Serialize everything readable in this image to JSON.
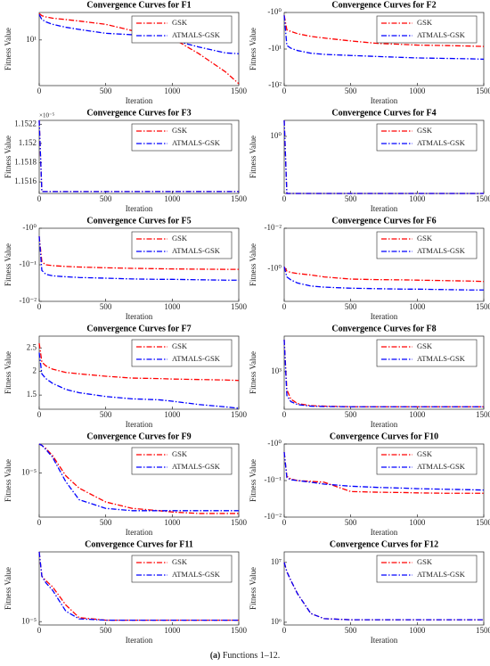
{
  "chart_data": [
    {
      "type": "line",
      "title": "Convergence Curves for F1",
      "x_label": "Iteration",
      "y_label": "Fitness Value",
      "y_scale": "log",
      "legend": "upper right",
      "x": [
        0,
        20,
        50,
        100,
        200,
        300,
        500,
        700,
        900,
        1000,
        1200,
        1400,
        1500
      ],
      "xlim": [
        0,
        1500
      ],
      "xticks": [
        0,
        500,
        1000,
        1500
      ],
      "ylim": [
        1,
        40
      ],
      "yticks": [
        {
          "value": 10,
          "label": "10¹"
        }
      ],
      "series": [
        {
          "name": "GSK",
          "color": "#ff0000",
          "values": [
            38,
            34,
            32,
            30,
            28,
            26,
            22,
            16,
            13,
            11,
            5,
            2,
            1.1
          ]
        },
        {
          "name": "ATMALS-GSK",
          "color": "#0000ff",
          "values": [
            36,
            28,
            25,
            22,
            19,
            17,
            14,
            13,
            12,
            10,
            7,
            5.2,
            5
          ]
        }
      ]
    },
    {
      "type": "line",
      "title": "Convergence Curves for F2",
      "x_label": "Iteration",
      "y_label": "Fitness Value",
      "y_scale": "log",
      "legend": "upper right",
      "x": [
        0,
        20,
        50,
        100,
        200,
        300,
        500,
        700,
        900,
        1000,
        1200,
        1400,
        1500
      ],
      "xlim": [
        0,
        1500
      ],
      "xticks": [
        0,
        500,
        1000,
        1500
      ],
      "ylim": [
        -100,
        -1
      ],
      "yticks": [
        {
          "value": -1,
          "label": "-10⁰"
        },
        {
          "value": -10,
          "label": "-10¹"
        },
        {
          "value": -100,
          "label": "-10²"
        }
      ],
      "series": [
        {
          "name": "GSK",
          "color": "#ff0000",
          "values": [
            -1.2,
            -3,
            -3.3,
            -3.8,
            -4.5,
            -5,
            -6,
            -7,
            -7.5,
            -7.8,
            -8,
            -8.3,
            -8.5
          ]
        },
        {
          "name": "ATMALS-GSK",
          "color": "#0000ff",
          "values": [
            -1.2,
            -8,
            -9.5,
            -11,
            -13,
            -14,
            -15,
            -16,
            -17,
            -17.5,
            -18,
            -18.5,
            -19
          ]
        }
      ]
    },
    {
      "type": "line",
      "title": "Convergence Curves for F3",
      "x_label": "Iteration",
      "y_label": "Fitness Value",
      "y_scale": "linear",
      "legend": "upper right",
      "y_offset_label": "×10⁻⁵",
      "x": [
        0,
        20,
        50,
        100,
        200,
        300,
        500,
        700,
        900,
        1000,
        1200,
        1400,
        1500
      ],
      "xlim": [
        0,
        1500
      ],
      "xticks": [
        0,
        500,
        1000,
        1500
      ],
      "ylim": [
        1.15148e-05,
        1.15224e-05
      ],
      "yticks": [
        {
          "value": 1.1516e-05,
          "label": "1.1516"
        },
        {
          "value": 1.1518e-05,
          "label": "1.1518"
        },
        {
          "value": 1.152e-05,
          "label": "1.152"
        },
        {
          "value": 1.1522e-05,
          "label": "1.1522"
        }
      ],
      "series": [
        {
          "name": "GSK",
          "color": "#ff0000",
          "values": [
            1.15224e-05,
            1.1515e-05,
            1.1515e-05,
            1.1515e-05,
            1.1515e-05,
            1.1515e-05,
            1.1515e-05,
            1.1515e-05,
            1.1515e-05,
            1.1515e-05,
            1.1515e-05,
            1.1515e-05,
            1.1515e-05
          ]
        },
        {
          "name": "ATMALS-GSK",
          "color": "#0000ff",
          "values": [
            1.15224e-05,
            1.1515e-05,
            1.1515e-05,
            1.1515e-05,
            1.1515e-05,
            1.1515e-05,
            1.1515e-05,
            1.1515e-05,
            1.1515e-05,
            1.1515e-05,
            1.1515e-05,
            1.1515e-05,
            1.1515e-05
          ]
        }
      ]
    },
    {
      "type": "line",
      "title": "Convergence Curves for F4",
      "x_label": "Iteration",
      "y_label": "Fitness Value",
      "y_scale": "log",
      "legend": "upper right",
      "x": [
        0,
        20,
        50,
        100,
        200,
        300,
        500,
        700,
        900,
        1000,
        1200,
        1400,
        1500
      ],
      "xlim": [
        0,
        1500
      ],
      "xticks": [
        0,
        500,
        1000,
        1500
      ],
      "ylim": [
        0.02,
        3
      ],
      "yticks": [
        {
          "value": 1,
          "label": "10⁰"
        }
      ],
      "series": [
        {
          "name": "GSK",
          "color": "#ff0000",
          "values": [
            3,
            0.02,
            0.02,
            0.02,
            0.02,
            0.02,
            0.02,
            0.02,
            0.02,
            0.02,
            0.02,
            0.02,
            0.02
          ]
        },
        {
          "name": "ATMALS-GSK",
          "color": "#0000ff",
          "values": [
            3,
            0.02,
            0.02,
            0.02,
            0.02,
            0.02,
            0.02,
            0.02,
            0.02,
            0.02,
            0.02,
            0.02,
            0.02
          ]
        }
      ]
    },
    {
      "type": "line",
      "title": "Convergence Curves for F5",
      "x_label": "Iteration",
      "y_label": "Fitness Value",
      "y_scale": "log",
      "legend": "upper right",
      "x": [
        0,
        20,
        50,
        100,
        200,
        300,
        500,
        700,
        900,
        1000,
        1200,
        1400,
        1500
      ],
      "xlim": [
        0,
        1500
      ],
      "xticks": [
        0,
        500,
        1000,
        1500
      ],
      "ylim": [
        -0.01,
        -1
      ],
      "yticks": [
        {
          "value": -1,
          "label": "-10⁰"
        },
        {
          "value": -0.1,
          "label": "-10⁻¹"
        },
        {
          "value": -0.01,
          "label": "-10⁻²"
        }
      ],
      "series": [
        {
          "name": "GSK",
          "color": "#ff0000",
          "values": [
            -0.6,
            -0.12,
            -0.1,
            -0.095,
            -0.09,
            -0.087,
            -0.083,
            -0.08,
            -0.078,
            -0.077,
            -0.076,
            -0.075,
            -0.075
          ]
        },
        {
          "name": "ATMALS-GSK",
          "color": "#0000ff",
          "values": [
            -0.6,
            -0.07,
            -0.055,
            -0.05,
            -0.047,
            -0.045,
            -0.043,
            -0.041,
            -0.04,
            -0.04,
            -0.039,
            -0.038,
            -0.038
          ]
        }
      ]
    },
    {
      "type": "line",
      "title": "Convergence Curves for F6",
      "x_label": "Iteration",
      "y_label": "Fitness Value",
      "y_scale": "log",
      "legend": "upper right",
      "x": [
        0,
        20,
        50,
        100,
        200,
        300,
        500,
        700,
        900,
        1000,
        1200,
        1400,
        1500
      ],
      "xlim": [
        0,
        1500
      ],
      "xticks": [
        0,
        500,
        1000,
        1500
      ],
      "ylim": [
        -40,
        -0.01
      ],
      "yticks": [
        {
          "value": -0.01,
          "label": "-10⁻²"
        },
        {
          "value": -1,
          "label": "-10⁰"
        }
      ],
      "series": [
        {
          "name": "GSK",
          "color": "#ff0000",
          "values": [
            -0.8,
            -1.3,
            -1.5,
            -1.7,
            -2,
            -2.5,
            -3.2,
            -3.4,
            -3.5,
            -3.6,
            -3.8,
            -4,
            -4.2
          ]
        },
        {
          "name": "ATMALS-GSK",
          "color": "#0000ff",
          "values": [
            -0.8,
            -2.5,
            -3.5,
            -5,
            -7,
            -8,
            -9,
            -9.5,
            -10,
            -10,
            -10.5,
            -11,
            -11
          ]
        }
      ]
    },
    {
      "type": "line",
      "title": "Convergence Curves for F7",
      "x_label": "Iteration",
      "y_label": "Fitness Value",
      "y_scale": "linear",
      "legend": "upper right",
      "x": [
        0,
        20,
        50,
        100,
        200,
        300,
        500,
        700,
        900,
        1000,
        1200,
        1400,
        1500
      ],
      "xlim": [
        0,
        1500
      ],
      "xticks": [
        0,
        500,
        1000,
        1500
      ],
      "ylim": [
        1.2,
        2.75
      ],
      "yticks": [
        1.5,
        2,
        2.5
      ],
      "series": [
        {
          "name": "GSK",
          "color": "#ff0000",
          "values": [
            2.6,
            2.2,
            2.12,
            2.05,
            1.98,
            1.95,
            1.9,
            1.86,
            1.85,
            1.84,
            1.83,
            1.82,
            1.81
          ]
        },
        {
          "name": "ATMALS-GSK",
          "color": "#0000ff",
          "values": [
            2.4,
            1.95,
            1.85,
            1.75,
            1.62,
            1.55,
            1.47,
            1.42,
            1.4,
            1.37,
            1.3,
            1.25,
            1.22
          ]
        }
      ]
    },
    {
      "type": "line",
      "title": "Convergence Curves for F8",
      "x_label": "Iteration",
      "y_label": "Fitness Value",
      "y_scale": "log",
      "legend": "upper right",
      "x": [
        0,
        20,
        50,
        100,
        200,
        300,
        500,
        700,
        900,
        1000,
        1200,
        1400,
        1500
      ],
      "xlim": [
        0,
        1500
      ],
      "xticks": [
        0,
        500,
        1000,
        1500
      ],
      "ylim": [
        150,
        6000
      ],
      "yticks": [
        {
          "value": 1000,
          "label": "10³"
        }
      ],
      "series": [
        {
          "name": "GSK",
          "color": "#ff0000",
          "values": [
            5000,
            400,
            250,
            200,
            180,
            175,
            170,
            170,
            170,
            170,
            170,
            170,
            170
          ]
        },
        {
          "name": "ATMALS-GSK",
          "color": "#0000ff",
          "values": [
            5000,
            300,
            220,
            190,
            175,
            172,
            170,
            170,
            170,
            170,
            170,
            170,
            170
          ]
        }
      ]
    },
    {
      "type": "line",
      "title": "Convergence Curves for F9",
      "x_label": "Iteration",
      "y_label": "Fitness Value",
      "y_scale": "log",
      "legend": "upper right",
      "x": [
        0,
        20,
        50,
        100,
        200,
        300,
        500,
        700,
        900,
        1000,
        1200,
        1400,
        1500
      ],
      "xlim": [
        0,
        1500
      ],
      "xticks": [
        0,
        500,
        1000,
        1500
      ],
      "ylim": [
        3e-07,
        0.0001
      ],
      "yticks": [
        {
          "value": 1e-05,
          "label": "10⁻⁵"
        }
      ],
      "series": [
        {
          "name": "GSK",
          "color": "#ff0000",
          "values": [
            0.0001,
            9e-05,
            7e-05,
            4e-05,
            8e-06,
            3e-06,
            1e-06,
            6e-07,
            5e-07,
            4.5e-07,
            4e-07,
            4e-07,
            4e-07
          ]
        },
        {
          "name": "ATMALS-GSK",
          "color": "#0000ff",
          "values": [
            0.0001,
            9e-05,
            6.5e-05,
            3.5e-05,
            5e-06,
            1.2e-06,
            6e-07,
            5e-07,
            5e-07,
            5e-07,
            5e-07,
            5e-07,
            5e-07
          ]
        }
      ]
    },
    {
      "type": "line",
      "title": "Convergence Curves for F10",
      "x_label": "Iteration",
      "y_label": "Fitness Value",
      "y_scale": "log",
      "legend": "upper right",
      "x": [
        0,
        20,
        50,
        100,
        200,
        300,
        500,
        700,
        900,
        1000,
        1200,
        1400,
        1500
      ],
      "xlim": [
        0,
        1500
      ],
      "xticks": [
        0,
        500,
        1000,
        1500
      ],
      "ylim": [
        -0.01,
        -1
      ],
      "yticks": [
        {
          "value": -1,
          "label": "-10⁰"
        },
        {
          "value": -0.1,
          "label": "-10⁻¹"
        },
        {
          "value": -0.01,
          "label": "-10⁻²"
        }
      ],
      "series": [
        {
          "name": "GSK",
          "color": "#ff0000",
          "values": [
            -0.6,
            -0.13,
            -0.11,
            -0.1,
            -0.095,
            -0.09,
            -0.05,
            -0.048,
            -0.047,
            -0.046,
            -0.045,
            -0.045,
            -0.045
          ]
        },
        {
          "name": "ATMALS-GSK",
          "color": "#0000ff",
          "values": [
            -0.6,
            -0.12,
            -0.105,
            -0.1,
            -0.09,
            -0.08,
            -0.07,
            -0.065,
            -0.062,
            -0.06,
            -0.058,
            -0.056,
            -0.055
          ]
        }
      ]
    },
    {
      "type": "line",
      "title": "Convergence Curves for F11",
      "x_label": "Iteration",
      "y_label": "Fitness Value",
      "y_scale": "log",
      "legend": "upper right",
      "x": [
        0,
        20,
        50,
        100,
        200,
        300,
        500,
        700,
        900,
        1000,
        1200,
        1400,
        1500
      ],
      "xlim": [
        0,
        1500
      ],
      "xticks": [
        0,
        500,
        1000,
        1500
      ],
      "ylim": [
        8e-06,
        0.001
      ],
      "yticks": [
        {
          "value": 1e-05,
          "label": "10⁻⁵"
        }
      ],
      "series": [
        {
          "name": "GSK",
          "color": "#ff0000",
          "values": [
            0.001,
            0.0002,
            0.00015,
            0.0001,
            3e-05,
            1.3e-05,
            1.1e-05,
            1.1e-05,
            1.1e-05,
            1.1e-05,
            1.1e-05,
            1.1e-05,
            1.1e-05
          ]
        },
        {
          "name": "ATMALS-GSK",
          "color": "#0000ff",
          "values": [
            0.001,
            0.0002,
            0.00013,
            8e-05,
            2e-05,
            1.2e-05,
            1.1e-05,
            1.1e-05,
            1.1e-05,
            1.1e-05,
            1.1e-05,
            1.1e-05,
            1.1e-05
          ]
        }
      ]
    },
    {
      "type": "line",
      "title": "Convergence Curves for F12",
      "x_label": "Iteration",
      "y_label": "Fitness Value",
      "y_scale": "log",
      "legend": "upper right",
      "x": [
        0,
        20,
        50,
        100,
        200,
        300,
        500,
        700,
        900,
        1000,
        1200,
        1400,
        1500
      ],
      "xlim": [
        0,
        1500
      ],
      "xticks": [
        0,
        500,
        1000,
        1500
      ],
      "ylim": [
        900000.0,
        15000000.0
      ],
      "yticks": [
        {
          "value": 1000000,
          "label": "10⁶"
        },
        {
          "value": 10000000,
          "label": "10⁷"
        }
      ],
      "series": [
        {
          "name": "GSK",
          "color": "#ff0000",
          "values": [
            10000000.0,
            7000000.0,
            5000000.0,
            3000000.0,
            1400000.0,
            1150000.0,
            1100000.0,
            1100000.0,
            1100000.0,
            1100000.0,
            1100000.0,
            1100000.0,
            1100000.0
          ]
        },
        {
          "name": "ATMALS-GSK",
          "color": "#0000ff",
          "values": [
            10000000.0,
            7000000.0,
            5000000.0,
            3000000.0,
            1400000.0,
            1150000.0,
            1100000.0,
            1100000.0,
            1100000.0,
            1100000.0,
            1100000.0,
            1100000.0,
            1100000.0
          ]
        }
      ]
    }
  ],
  "caption_label": "(a)",
  "caption": "Functions 1–12."
}
